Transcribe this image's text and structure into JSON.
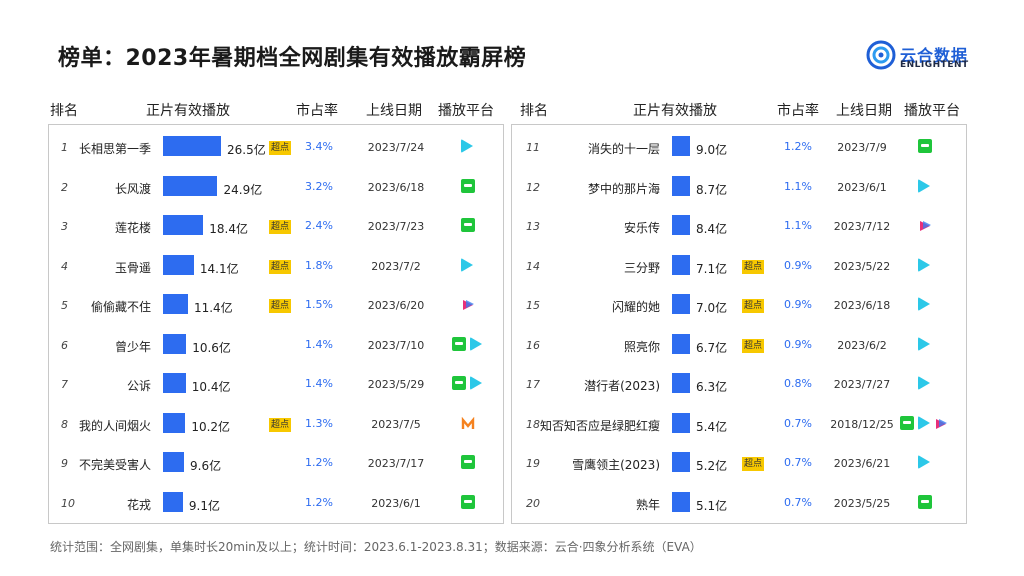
{
  "title": "榜单：2023年暑期档全网剧集有效播放霸屏榜",
  "logo": {
    "cn": "云合数据",
    "en": "ENLIGHTENT"
  },
  "headers": {
    "rank": "排名",
    "views": "正片有效播放",
    "share": "市占率",
    "date": "上线日期",
    "platform": "播放平台"
  },
  "footer": "统计范围：全网剧集，单集时长20min及以上；统计时间：2023.6.1-2023.8.31；数据来源：云合·四象分析系统（EVA）",
  "colors": {
    "bar": "#2d6cf0",
    "share_text": "#2d6cf0",
    "tag_bg": "#f7c800"
  },
  "chart_data": {
    "type": "bar",
    "unit": "亿",
    "tag_label": "超点",
    "rows": [
      {
        "rank": "1",
        "name": "长相思第一季",
        "value": 26.5,
        "value_label": "26.5亿",
        "tag": true,
        "share": "3.4%",
        "date": "2023/7/24",
        "platforms": [
          "tencent"
        ]
      },
      {
        "rank": "2",
        "name": "长风渡",
        "value": 24.9,
        "value_label": "24.9亿",
        "tag": false,
        "share": "3.2%",
        "date": "2023/6/18",
        "platforms": [
          "iqiyi"
        ]
      },
      {
        "rank": "3",
        "name": "莲花楼",
        "value": 18.4,
        "value_label": "18.4亿",
        "tag": true,
        "share": "2.4%",
        "date": "2023/7/23",
        "platforms": [
          "iqiyi"
        ]
      },
      {
        "rank": "4",
        "name": "玉骨遥",
        "value": 14.1,
        "value_label": "14.1亿",
        "tag": true,
        "share": "1.8%",
        "date": "2023/7/2",
        "platforms": [
          "tencent"
        ]
      },
      {
        "rank": "5",
        "name": "偷偷藏不住",
        "value": 11.4,
        "value_label": "11.4亿",
        "tag": true,
        "share": "1.5%",
        "date": "2023/6/20",
        "platforms": [
          "youku"
        ]
      },
      {
        "rank": "6",
        "name": "曾少年",
        "value": 10.6,
        "value_label": "10.6亿",
        "tag": false,
        "share": "1.4%",
        "date": "2023/7/10",
        "platforms": [
          "iqiyi",
          "tencent"
        ]
      },
      {
        "rank": "7",
        "name": "公诉",
        "value": 10.4,
        "value_label": "10.4亿",
        "tag": false,
        "share": "1.4%",
        "date": "2023/5/29",
        "platforms": [
          "iqiyi",
          "tencent"
        ]
      },
      {
        "rank": "8",
        "name": "我的人间烟火",
        "value": 10.2,
        "value_label": "10.2亿",
        "tag": true,
        "share": "1.3%",
        "date": "2023/7/5",
        "platforms": [
          "mgtv"
        ]
      },
      {
        "rank": "9",
        "name": "不完美受害人",
        "value": 9.6,
        "value_label": "9.6亿",
        "tag": false,
        "share": "1.2%",
        "date": "2023/7/17",
        "platforms": [
          "iqiyi"
        ]
      },
      {
        "rank": "10",
        "name": "花戎",
        "value": 9.1,
        "value_label": "9.1亿",
        "tag": false,
        "share": "1.2%",
        "date": "2023/6/1",
        "platforms": [
          "iqiyi"
        ]
      },
      {
        "rank": "11",
        "name": "消失的十一层",
        "value": 9.0,
        "value_label": "9.0亿",
        "tag": false,
        "share": "1.2%",
        "date": "2023/7/9",
        "platforms": [
          "iqiyi"
        ]
      },
      {
        "rank": "12",
        "name": "梦中的那片海",
        "value": 8.7,
        "value_label": "8.7亿",
        "tag": false,
        "share": "1.1%",
        "date": "2023/6/1",
        "platforms": [
          "tencent"
        ]
      },
      {
        "rank": "13",
        "name": "安乐传",
        "value": 8.4,
        "value_label": "8.4亿",
        "tag": false,
        "share": "1.1%",
        "date": "2023/7/12",
        "platforms": [
          "youku"
        ]
      },
      {
        "rank": "14",
        "name": "三分野",
        "value": 7.1,
        "value_label": "7.1亿",
        "tag": true,
        "share": "0.9%",
        "date": "2023/5/22",
        "platforms": [
          "tencent"
        ]
      },
      {
        "rank": "15",
        "name": "闪耀的她",
        "value": 7.0,
        "value_label": "7.0亿",
        "tag": true,
        "share": "0.9%",
        "date": "2023/6/18",
        "platforms": [
          "tencent"
        ]
      },
      {
        "rank": "16",
        "name": "照亮你",
        "value": 6.7,
        "value_label": "6.7亿",
        "tag": true,
        "share": "0.9%",
        "date": "2023/6/2",
        "platforms": [
          "tencent"
        ]
      },
      {
        "rank": "17",
        "name": "潜行者(2023)",
        "value": 6.3,
        "value_label": "6.3亿",
        "tag": false,
        "share": "0.8%",
        "date": "2023/7/27",
        "platforms": [
          "tencent"
        ]
      },
      {
        "rank": "18",
        "name": "知否知否应是绿肥红瘦",
        "value": 5.4,
        "value_label": "5.4亿",
        "tag": false,
        "share": "0.7%",
        "date": "2018/12/25",
        "platforms": [
          "iqiyi",
          "tencent",
          "youku"
        ]
      },
      {
        "rank": "19",
        "name": "雪鹰领主(2023)",
        "value": 5.2,
        "value_label": "5.2亿",
        "tag": true,
        "share": "0.7%",
        "date": "2023/6/21",
        "platforms": [
          "tencent"
        ]
      },
      {
        "rank": "20",
        "name": "熟年",
        "value": 5.1,
        "value_label": "5.1亿",
        "tag": false,
        "share": "0.7%",
        "date": "2023/5/25",
        "platforms": [
          "iqiyi"
        ]
      }
    ]
  }
}
